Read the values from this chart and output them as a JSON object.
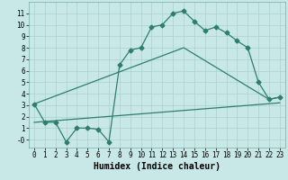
{
  "line1_x": [
    0,
    1,
    2,
    3,
    4,
    5,
    6,
    7,
    8,
    9,
    10,
    11,
    12,
    13,
    14,
    15,
    16,
    17,
    18,
    19,
    20,
    21,
    22,
    23
  ],
  "line1_y": [
    3.1,
    1.5,
    1.5,
    -0.2,
    1.0,
    1.0,
    0.9,
    -0.2,
    6.5,
    7.8,
    8.0,
    9.8,
    10.0,
    11.0,
    11.2,
    10.3,
    9.5,
    9.8,
    9.3,
    8.6,
    8.0,
    5.0,
    3.5,
    3.7
  ],
  "line2_x": [
    0,
    14,
    22,
    23
  ],
  "line2_y": [
    3.1,
    8.0,
    3.5,
    3.7
  ],
  "line3_x": [
    0,
    23
  ],
  "line3_y": [
    1.5,
    3.2
  ],
  "line_color": "#2e7d6e",
  "bg_color": "#c8e8e8",
  "grid_color": "#aacfcf",
  "xlabel": "Humidex (Indice chaleur)",
  "ylim": [
    -0.7,
    12.0
  ],
  "xlim": [
    -0.5,
    23.5
  ],
  "yticks": [
    0,
    1,
    2,
    3,
    4,
    5,
    6,
    7,
    8,
    9,
    10,
    11
  ],
  "xticks": [
    0,
    1,
    2,
    3,
    4,
    5,
    6,
    7,
    8,
    9,
    10,
    11,
    12,
    13,
    14,
    15,
    16,
    17,
    18,
    19,
    20,
    21,
    22,
    23
  ],
  "xlabel_fontsize": 7,
  "tick_fontsize": 5.5,
  "marker_size": 2.5,
  "linewidth": 0.9
}
